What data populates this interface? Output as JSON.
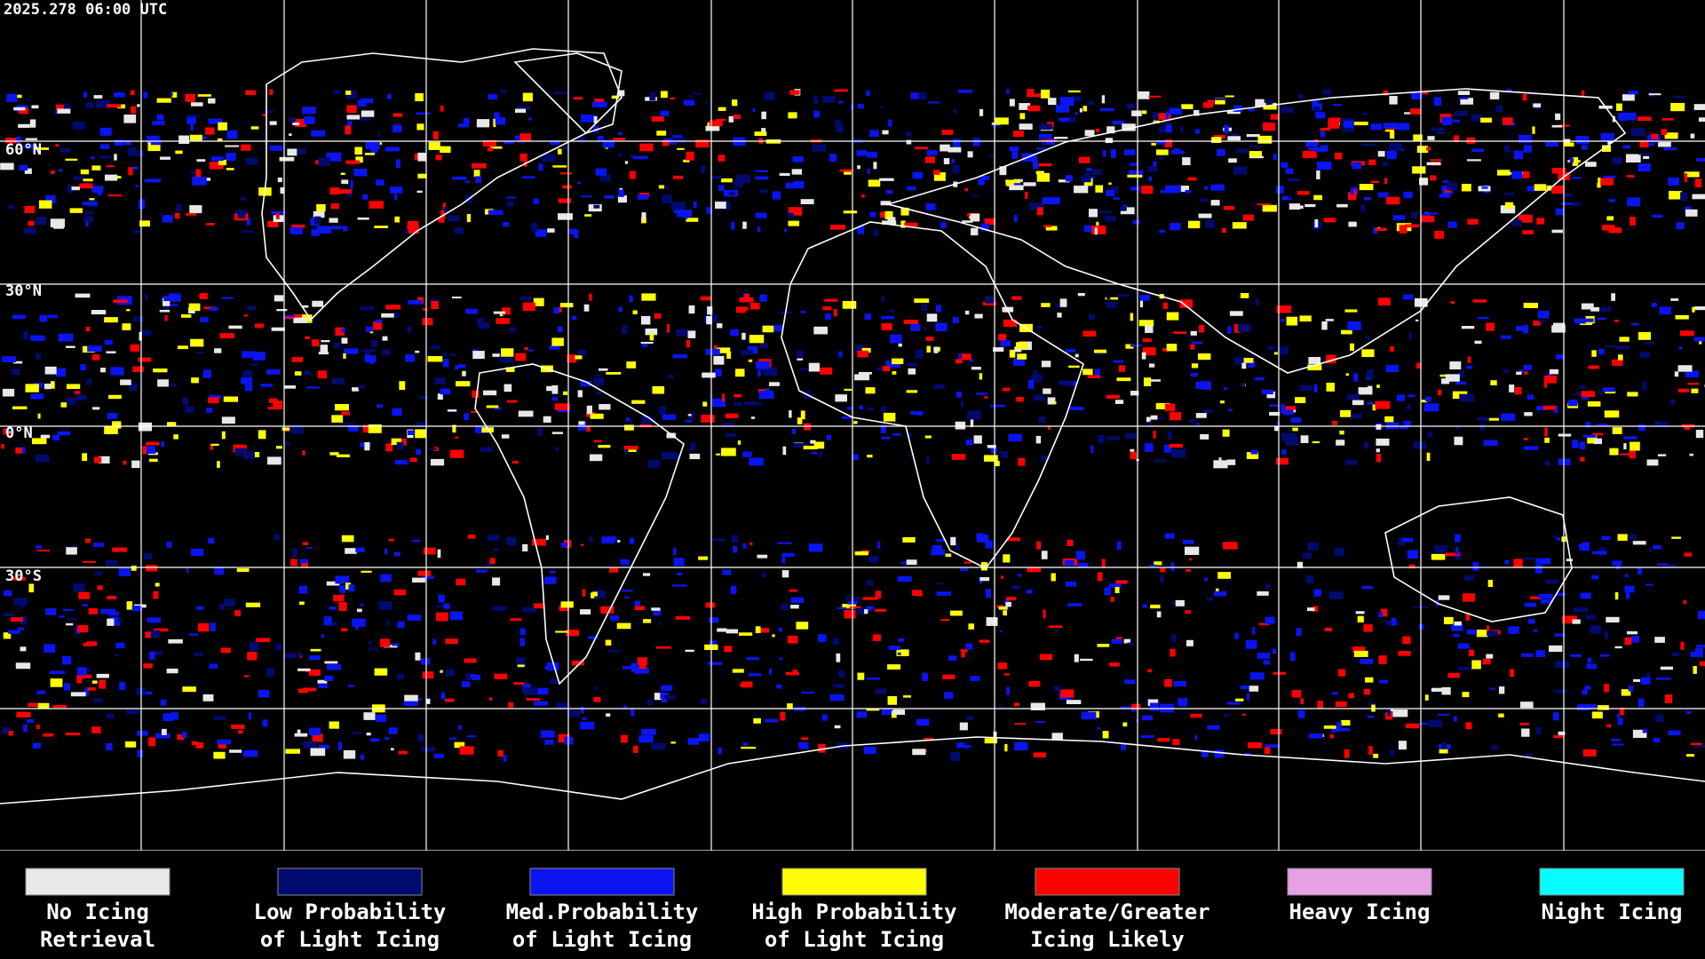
{
  "timestamp": "2025.278 06:00 UTC",
  "latitude_labels": [
    "60°N",
    "30°N",
    "0°N",
    "30°S"
  ],
  "legend": [
    {
      "lines": [
        "No Icing",
        "Retrieval"
      ],
      "color": "#e8e8e8"
    },
    {
      "lines": [
        "Low Probability",
        "of Light Icing"
      ],
      "color": "#000a6e"
    },
    {
      "lines": [
        "Med.Probability",
        "of Light Icing"
      ],
      "color": "#0a14f0"
    },
    {
      "lines": [
        "High Probability",
        "of Light Icing"
      ],
      "color": "#ffff00"
    },
    {
      "lines": [
        "Moderate/Greater",
        "Icing Likely"
      ],
      "color": "#ff0000"
    },
    {
      "lines": [
        "Heavy Icing"
      ],
      "color": "#e6a0e6"
    },
    {
      "lines": [
        "Night Icing"
      ],
      "color": "#00ffff"
    }
  ]
}
